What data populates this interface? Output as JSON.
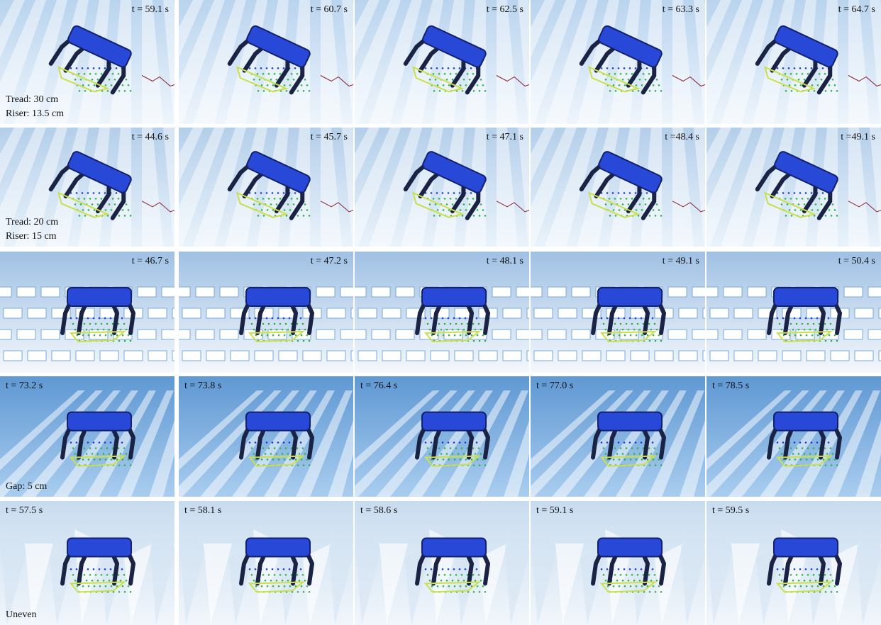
{
  "rows": [
    {
      "frames": [
        "t = 59.1 s",
        "t = 60.7 s",
        "t = 62.5 s",
        "t = 63.3 s",
        "t = 64.7 s"
      ],
      "labels": [
        "Tread: 30 cm",
        "Riser: 13.5 cm"
      ]
    },
    {
      "frames": [
        "t = 44.6 s",
        "t = 45.7 s",
        "t = 47.1 s",
        "t =48.4 s",
        "t =49.1 s"
      ],
      "labels": [
        "Tread: 20 cm",
        "Riser: 15 cm"
      ]
    },
    {
      "frames": [
        "t = 46.7 s",
        "t = 47.2 s",
        "t = 48.1 s",
        "t = 49.1 s",
        "t = 50.4 s"
      ],
      "labels": []
    },
    {
      "frames": [
        "t = 73.2 s",
        "t = 73.8 s",
        "t = 76.4 s",
        "t = 77.0 s",
        "t = 78.5 s"
      ],
      "labels": [
        "Gap: 5 cm"
      ]
    },
    {
      "frames": [
        "t = 57.5 s",
        "t = 58.1 s",
        "t = 58.6 s",
        "t = 59.1 s",
        "t = 59.5 s"
      ],
      "labels": [
        "Uneven"
      ]
    }
  ]
}
